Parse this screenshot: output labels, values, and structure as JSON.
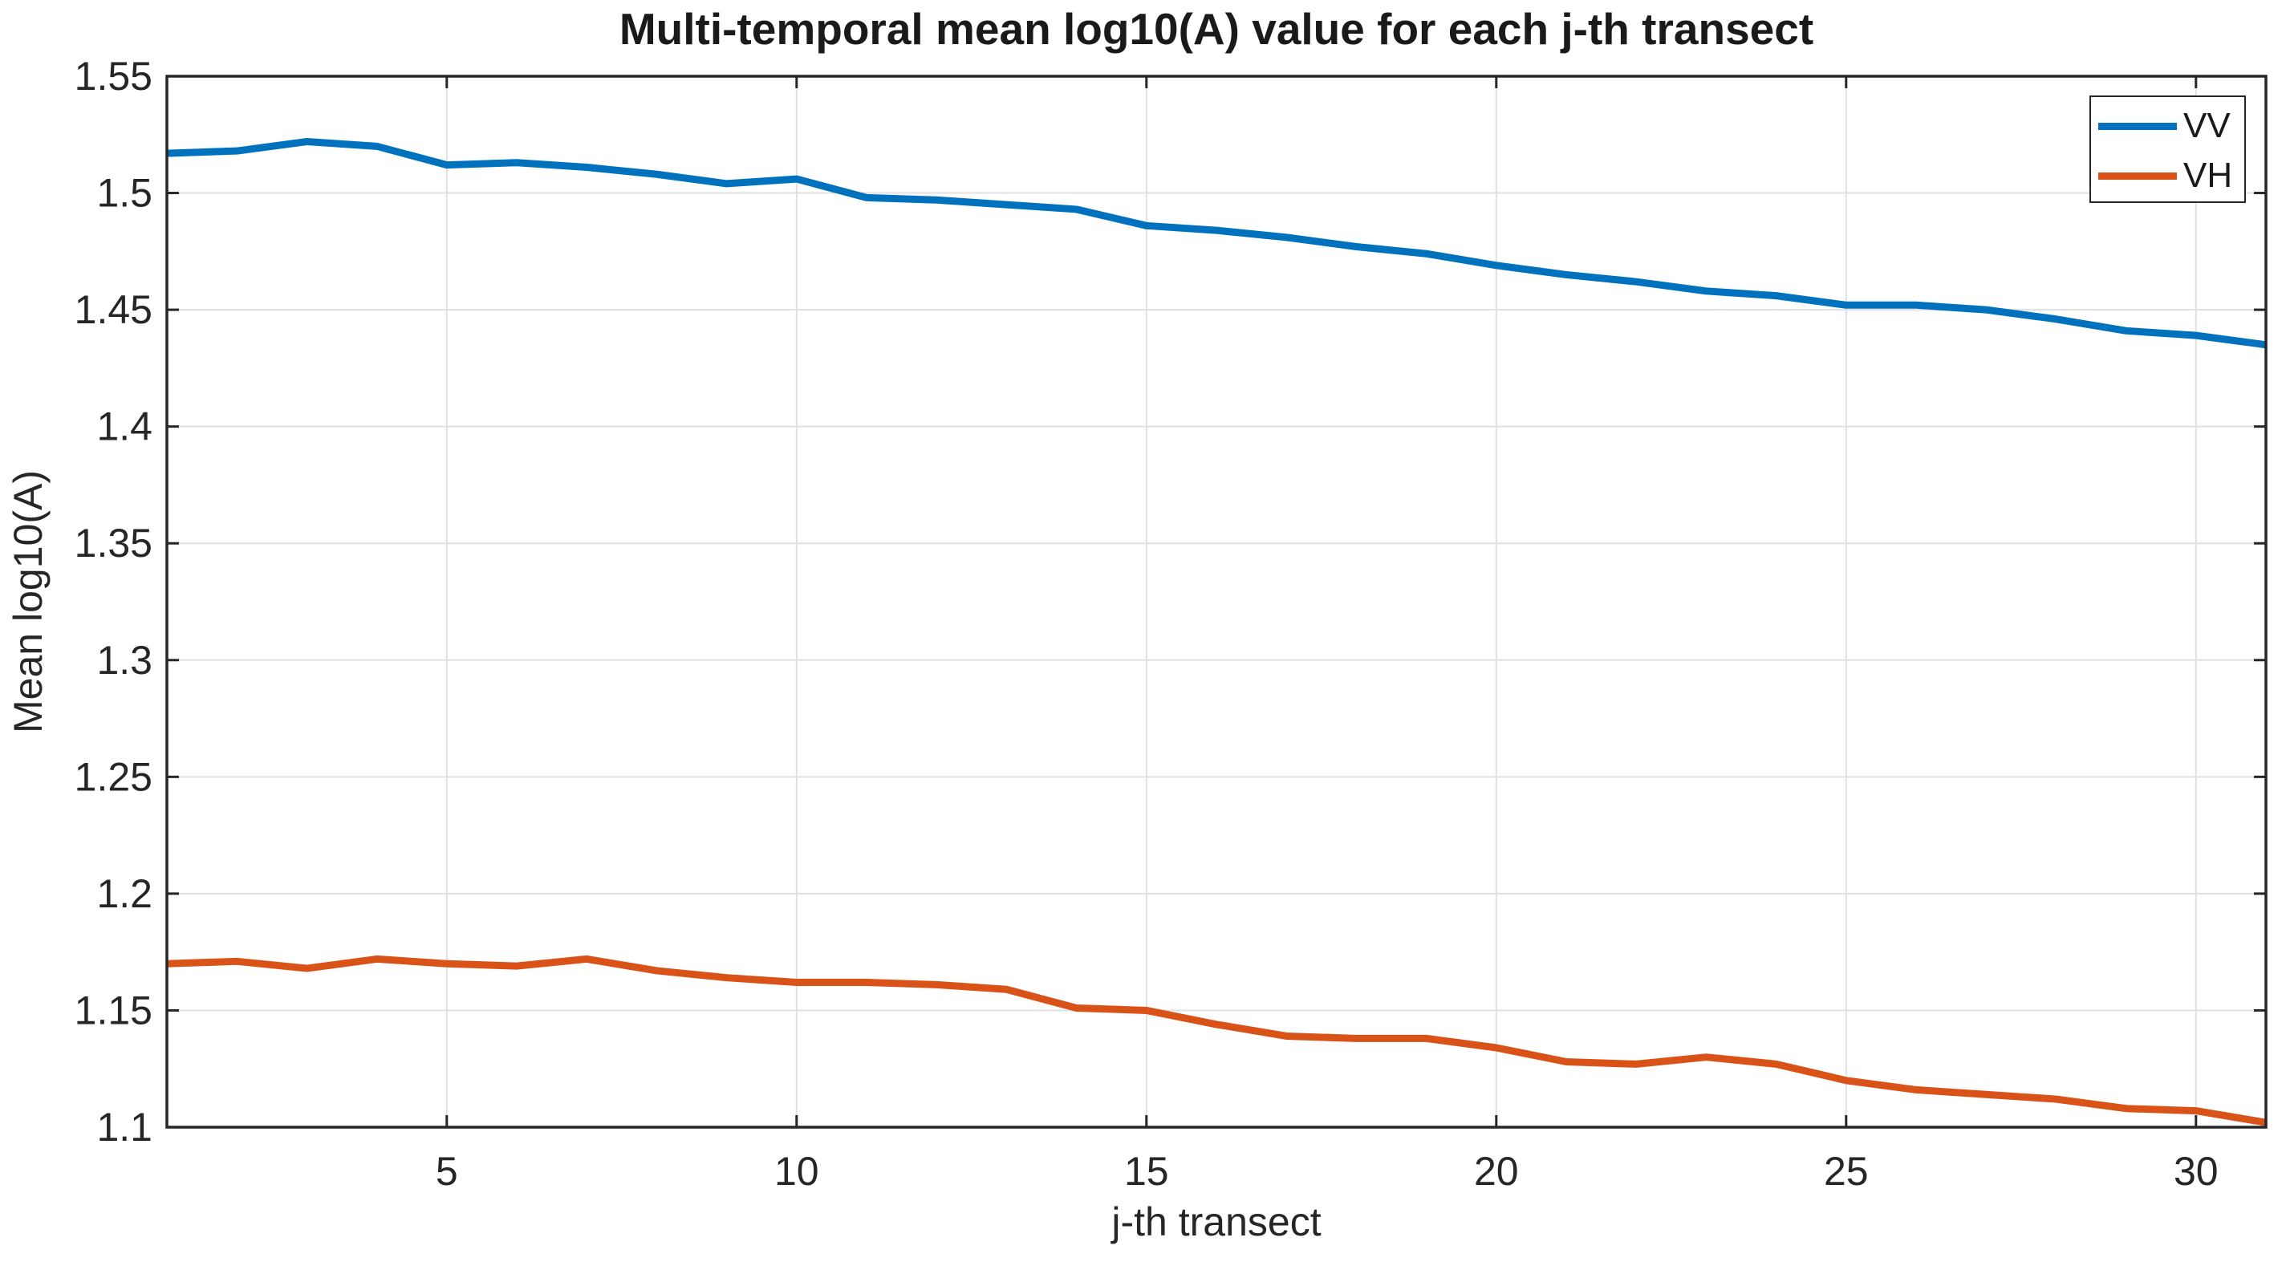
{
  "figure": {
    "background": "#ffffff",
    "axis_color": "#262626",
    "grid_color": "#e0e0e0"
  },
  "chart_data": {
    "type": "line",
    "title": "Multi-temporal mean log10(A) value for each j-th transect",
    "xlabel": "j-th transect",
    "ylabel": "Mean log10(A)",
    "xlim": [
      1,
      31
    ],
    "ylim": [
      1.1,
      1.55
    ],
    "grid": true,
    "legend_position": "top-right",
    "xticks": {
      "values": [
        5,
        10,
        15,
        20,
        25,
        30
      ],
      "labels": [
        "5",
        "10",
        "15",
        "20",
        "25",
        "30"
      ]
    },
    "yticks": {
      "values": [
        1.1,
        1.15,
        1.2,
        1.25,
        1.3,
        1.35,
        1.4,
        1.45,
        1.5,
        1.55
      ],
      "labels": [
        "1.1",
        "1.15",
        "1.2",
        "1.25",
        "1.3",
        "1.35",
        "1.4",
        "1.45",
        "1.5",
        "1.55"
      ]
    },
    "x": [
      1,
      2,
      3,
      4,
      5,
      6,
      7,
      8,
      9,
      10,
      11,
      12,
      13,
      14,
      15,
      16,
      17,
      18,
      19,
      20,
      21,
      22,
      23,
      24,
      25,
      26,
      27,
      28,
      29,
      30,
      31
    ],
    "series": [
      {
        "name": "VV",
        "color": "#0072BD",
        "values": [
          1.517,
          1.518,
          1.522,
          1.52,
          1.512,
          1.513,
          1.511,
          1.508,
          1.504,
          1.506,
          1.498,
          1.497,
          1.495,
          1.493,
          1.486,
          1.484,
          1.481,
          1.477,
          1.474,
          1.469,
          1.465,
          1.462,
          1.458,
          1.456,
          1.452,
          1.452,
          1.45,
          1.446,
          1.441,
          1.439,
          1.435
        ]
      },
      {
        "name": "VH",
        "color": "#D95319",
        "values": [
          1.17,
          1.171,
          1.168,
          1.172,
          1.17,
          1.169,
          1.172,
          1.167,
          1.164,
          1.162,
          1.162,
          1.161,
          1.159,
          1.151,
          1.15,
          1.144,
          1.139,
          1.138,
          1.138,
          1.134,
          1.128,
          1.127,
          1.13,
          1.127,
          1.12,
          1.116,
          1.114,
          1.112,
          1.108,
          1.107,
          1.102
        ]
      }
    ]
  }
}
